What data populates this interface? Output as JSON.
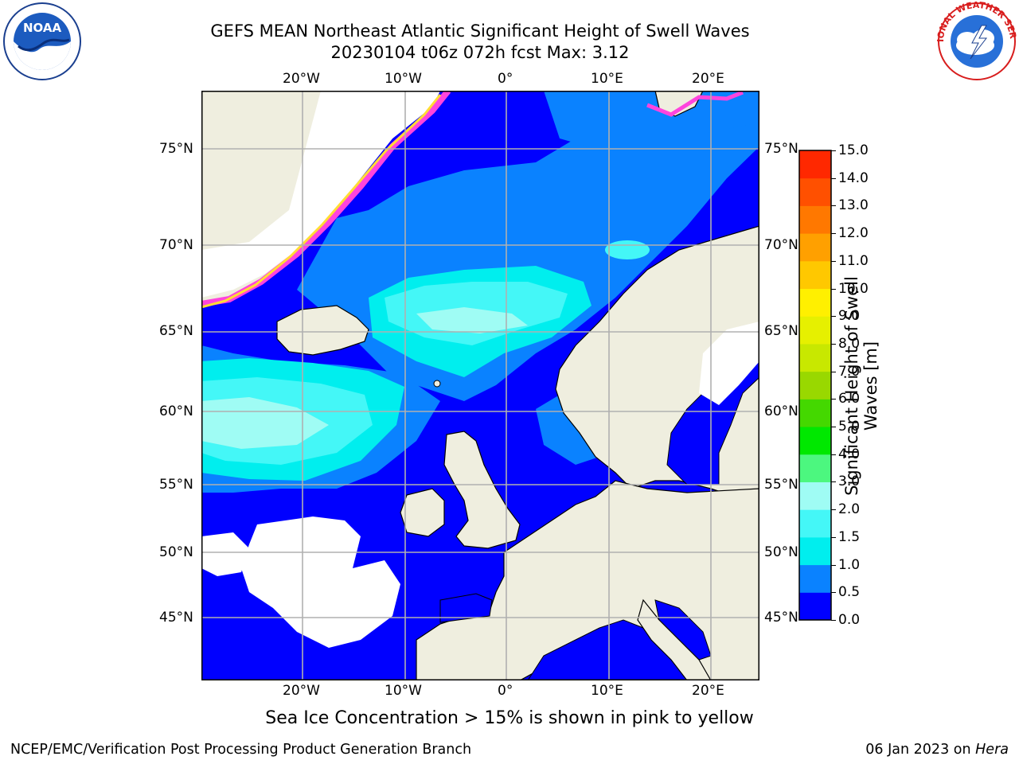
{
  "header": {
    "title_line1": "GEFS MEAN Northeast Atlantic Significant Height of Swell Waves",
    "title_line2": "20230104 t06z 072h fcst   Max: 3.12"
  },
  "logos": {
    "left": "NOAA",
    "right": "NATIONAL WEATHER SERVICE"
  },
  "map": {
    "lon_labels": [
      "20°W",
      "10°W",
      "0°",
      "10°E",
      "20°E"
    ],
    "lat_labels": [
      "75°N",
      "70°N",
      "65°N",
      "60°N",
      "55°N",
      "50°N",
      "45°N"
    ],
    "colors": {
      "land": "#efeedf",
      "ocean_low": "#0000ff",
      "ocean_mid": "#0a82ff",
      "ocean_high": "#44f4f4",
      "ocean_peak": "#9ffcf0",
      "ice": "#ff44dd",
      "grid": "#b0b0b0"
    }
  },
  "colorbar": {
    "label": "Significant Height of Swell Waves [m]",
    "ticks": [
      "15.0",
      "14.0",
      "13.0",
      "12.0",
      "11.0",
      "10.0",
      "9.0",
      "8.0",
      "7.0",
      "6.0",
      "5.0",
      "4.0",
      "3.0",
      "2.0",
      "1.5",
      "1.0",
      "0.5",
      "0.0"
    ],
    "colors_bottom_to_top": [
      "#0000ff",
      "#0a82ff",
      "#00eeee",
      "#44f7f7",
      "#9ffcf4",
      "#4cf77f",
      "#00e800",
      "#44d800",
      "#99d800",
      "#c8e800",
      "#e6f000",
      "#fff000",
      "#ffc800",
      "#ffa000",
      "#ff7800",
      "#ff5000",
      "#ff2800",
      "#ff0000"
    ]
  },
  "note": "Sea Ice Concentration > 15% is shown in pink to yellow",
  "footer": {
    "left": "NCEP/EMC/Verification Post Processing Product Generation Branch",
    "right_prefix": "06 Jan 2023 on ",
    "right_host": "Hera"
  }
}
